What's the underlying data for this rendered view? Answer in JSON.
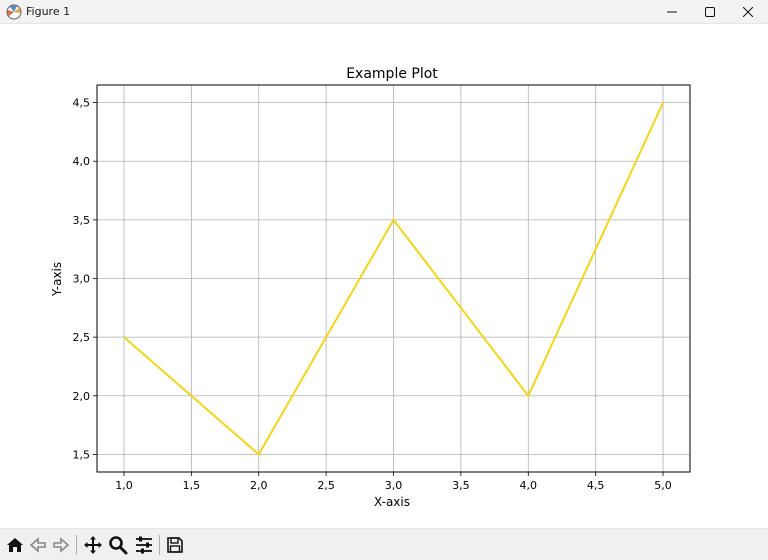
{
  "window": {
    "title": "Figure 1",
    "controls": [
      "minimize",
      "maximize",
      "close"
    ]
  },
  "toolbar": {
    "buttons": [
      {
        "name": "home",
        "icon": "home-icon"
      },
      {
        "name": "back",
        "icon": "arrow-left-icon"
      },
      {
        "name": "forward",
        "icon": "arrow-right-icon"
      },
      {
        "name": "pan",
        "icon": "move-icon"
      },
      {
        "name": "zoom",
        "icon": "magnifier-icon"
      },
      {
        "name": "configure-subplots",
        "icon": "sliders-icon"
      },
      {
        "name": "save",
        "icon": "floppy-disk-icon"
      }
    ]
  },
  "colors": {
    "line": "#f2d51a",
    "grid": "#b0b0b0",
    "axes": "#000000",
    "toolbar_bg": "#f0f0f0"
  },
  "chart_data": {
    "type": "line",
    "title": "Example Plot",
    "xlabel": "X-axis",
    "ylabel": "Y-axis",
    "x": [
      1.0,
      2.0,
      3.0,
      4.0,
      5.0
    ],
    "series": [
      {
        "values": [
          2.5,
          1.5,
          3.5,
          2.0,
          4.5
        ]
      }
    ],
    "xlim": [
      0.8,
      5.2
    ],
    "ylim": [
      1.35,
      4.65
    ],
    "xticks": [
      1.0,
      1.5,
      2.0,
      2.5,
      3.0,
      3.5,
      4.0,
      4.5,
      5.0
    ],
    "xticklabels": [
      "1,0",
      "1,5",
      "2,0",
      "2,5",
      "3,0",
      "3,5",
      "4,0",
      "4,5",
      "5,0"
    ],
    "yticks": [
      1.5,
      2.0,
      2.5,
      3.0,
      3.5,
      4.0,
      4.5
    ],
    "yticklabels": [
      "1,5",
      "2,0",
      "2,5",
      "3,0",
      "3,5",
      "4,0",
      "4,5"
    ],
    "grid": true,
    "legend": false
  }
}
